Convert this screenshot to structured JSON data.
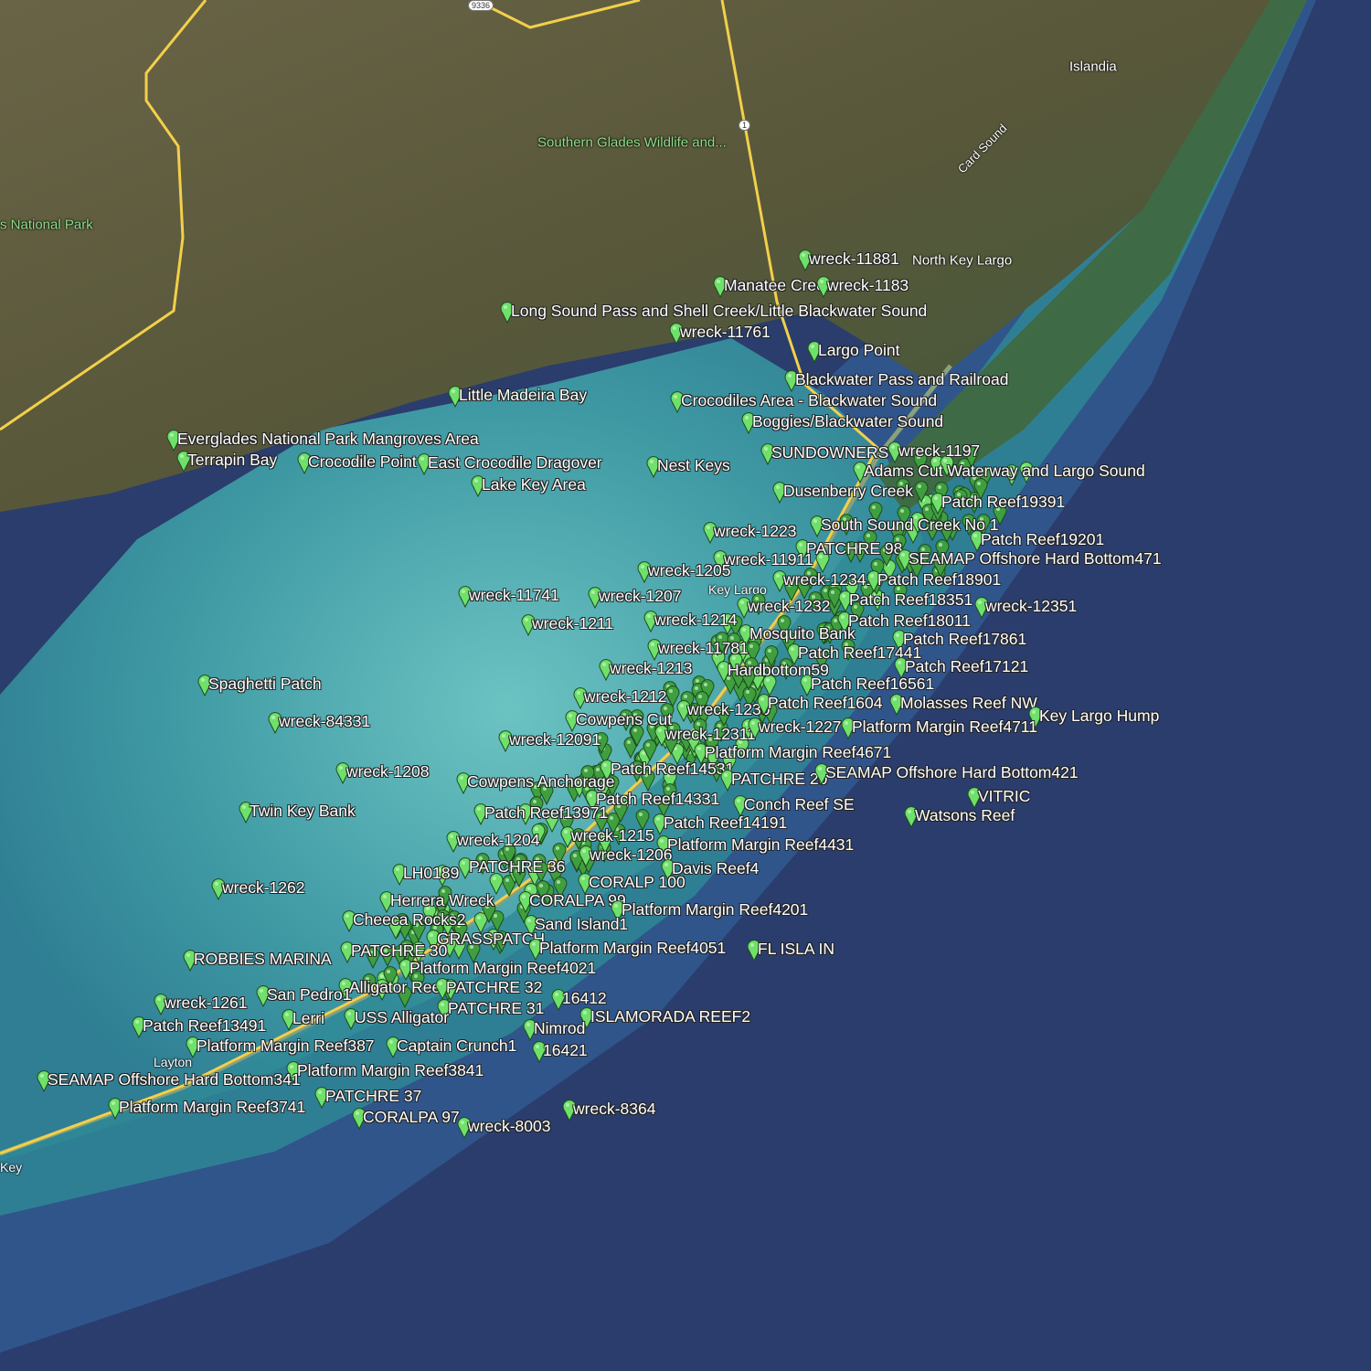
{
  "map": {
    "colors": {
      "land": "#5d5a3c",
      "shallow": "#4fa7ad",
      "shelf": "#2f5e93",
      "deep": "#2a3d6c",
      "road": "#f2d04a",
      "pin": "#5fd35a"
    },
    "base_labels": {
      "southern_glades": "Southern Glades Wildlife and...",
      "national_park": "s National Park",
      "islandia": "Islandia",
      "card_sound": "Card Sound",
      "north_key_largo": "North Key Largo",
      "key_largo": "Key Largo",
      "layton": "Layton",
      "key": "Key",
      "route_9336": "9336",
      "route_1": "1"
    },
    "markers": [
      "wreck-11881",
      "Manatee Creek",
      "wreck-1183",
      "Long Sound Pass and Shell Creek/Little Blackwater Sound",
      "wreck-11761",
      "Largo Point",
      "Blackwater Pass and Railroad",
      "Crocodiles Area - Blackwater Sound",
      "Boggies/Blackwater Sound",
      "Little Madeira Bay",
      "Everglades National Park Mangroves Area",
      "Terrapin Bay",
      "Crocodile Point",
      "East Crocodile Dragover",
      "Lake Key Area",
      "Nest Keys",
      "SUNDOWNERS",
      "wreck-1197",
      "Adams Cut Waterway and Largo Sound",
      "Dusenberry Creek",
      "Patch Reef19391",
      "wreck-1223",
      "South Sound Creek No 1",
      "Patch Reef19201",
      "PATCHRE 98",
      "SEAMAP Offshore Hard Bottom471",
      "wreck-11911",
      "wreck-1205",
      "wreck-12341",
      "Patch Reef18901",
      "wreck-11741",
      "wreck-1207",
      "wreck-1232",
      "Patch Reef18351",
      "wreck-12351",
      "wreck-1211",
      "wreck-1214",
      "Patch Reef18011",
      "Mosquito Bank",
      "Patch Reef17861",
      "wreck-11781",
      "Patch Reef17441",
      "wreck-1213",
      "Hardbottom59",
      "Patch Reef17121",
      "Patch Reef16561",
      "Spaghetti Patch",
      "wreck-1212",
      "wreck-1230",
      "Patch Reef1604",
      "Molasses Reef NW",
      "Key Largo Hump",
      "Cowpens Cut",
      "wreck-84331",
      "wreck-12311",
      "wreck-1227",
      "Platform Margin Reef4711",
      "wreck-12091",
      "Platform Margin Reef4671",
      "wreck-1208",
      "Patch Reef14531",
      "Cowpens Anchorage",
      "PATCHRE 20",
      "SEAMAP Offshore Hard Bottom421",
      "VITRIC",
      "Watsons Reef",
      "Twin Key Bank",
      "Patch Reef14331",
      "Conch Reef SE",
      "Patch Reef13971",
      "Patch Reef14191",
      "wreck-1204",
      "wreck-1215",
      "Platform Margin Reef4431",
      "wreck-1206",
      "LH0189",
      "PATCHRE 36",
      "Davis Reef4",
      "CORALP 100",
      "wreck-1262",
      "Herrera Wreck",
      "CORALPA 99",
      "Platform Margin Reef4201",
      "Cheeca Rocks2",
      "Sand Island1",
      "GRASSPATCH",
      "FL ISLA IN",
      "Platform Margin Reef4051",
      "PATCHRE 30",
      "ROBBIES MARINA",
      "Platform Margin Reef4021",
      "Alligator Reef",
      "PATCHRE 32",
      "San Pedro1",
      "16412",
      "wreck-1261",
      "PATCHRE 31",
      "USS Alligator",
      "Lerri",
      "ISLAMORADA REEF2",
      "Patch Reef13491",
      "Nimrod",
      "Platform Margin Reef387",
      "Captain Crunch1",
      "16421",
      "Platform Margin Reef3841",
      "SEAMAP Offshore Hard Bottom341",
      "PATCHRE 37",
      "Platform Margin Reef3741",
      "wreck-8364",
      "CORALPA 97",
      "wreck-8003"
    ]
  }
}
